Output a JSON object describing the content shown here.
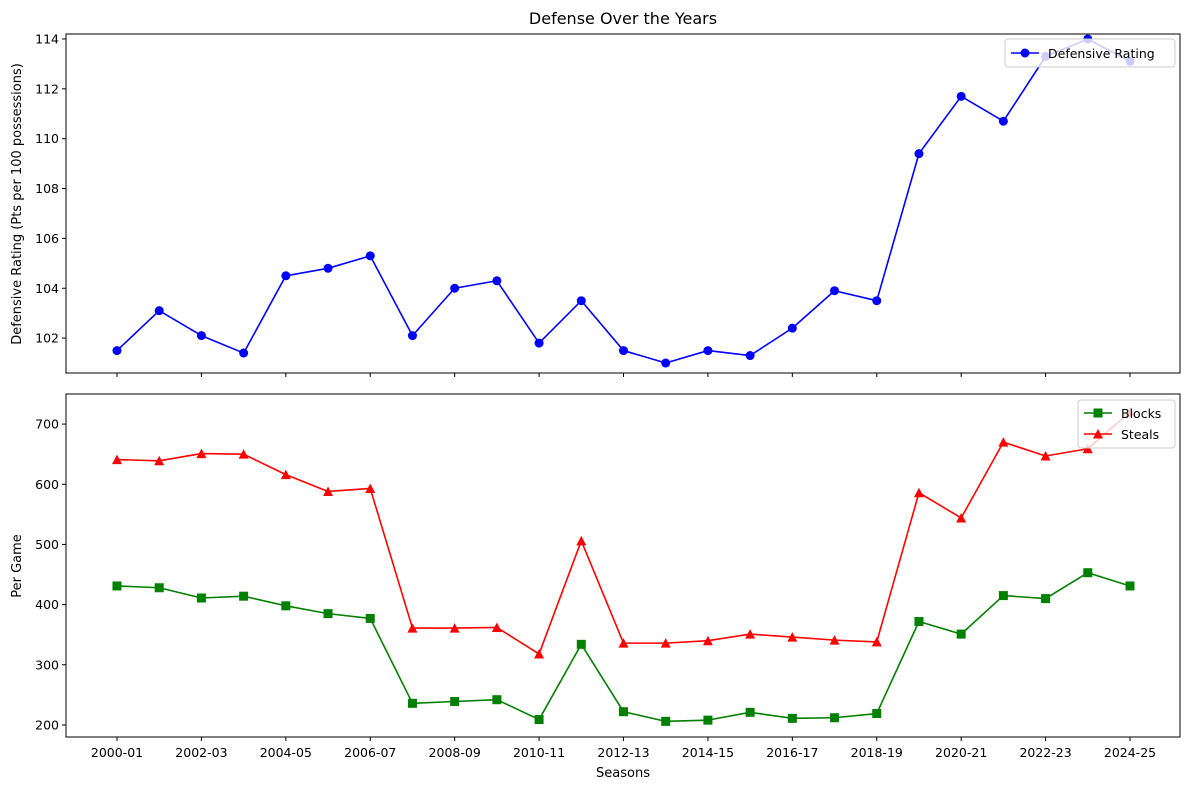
{
  "chart_data": [
    {
      "type": "line",
      "title": "Defense Over the Years",
      "xlabel": "",
      "ylabel": "Defensive Rating (Pts per 100 possessions)",
      "ylim": [
        100.6,
        114.2
      ],
      "yticks": [
        102,
        104,
        106,
        108,
        110,
        112,
        114
      ],
      "legend_position": "top-right",
      "grid": false,
      "categories": [
        "2000-01",
        "2001-02",
        "2002-03",
        "2003-04",
        "2004-05",
        "2005-06",
        "2006-07",
        "2007-08",
        "2008-09",
        "2009-10",
        "2010-11",
        "2011-12",
        "2012-13",
        "2013-14",
        "2014-15",
        "2015-16",
        "2016-17",
        "2017-18",
        "2018-19",
        "2019-20",
        "2020-21",
        "2021-22",
        "2022-23",
        "2023-24",
        "2024-25"
      ],
      "series": [
        {
          "name": "Defensive Rating",
          "color": "#0000ff",
          "marker": "circle",
          "values": [
            101.5,
            103.1,
            102.1,
            101.4,
            104.5,
            104.8,
            105.3,
            102.1,
            104.0,
            104.3,
            101.8,
            103.5,
            101.5,
            101.0,
            101.5,
            101.3,
            102.4,
            103.9,
            103.5,
            109.4,
            111.7,
            110.7,
            113.3,
            114.0,
            113.1
          ]
        }
      ]
    },
    {
      "type": "line",
      "title": "",
      "xlabel": "Seasons",
      "ylabel": "Per Game",
      "ylim": [
        180,
        750
      ],
      "yticks": [
        200,
        300,
        400,
        500,
        600,
        700
      ],
      "legend_position": "top-right",
      "grid": false,
      "xtick_labels": [
        "2000-01",
        "2002-03",
        "2004-05",
        "2006-07",
        "2008-09",
        "2010-11",
        "2012-13",
        "2014-15",
        "2016-17",
        "2018-19",
        "2020-21",
        "2022-23",
        "2024-25"
      ],
      "categories": [
        "2000-01",
        "2001-02",
        "2002-03",
        "2003-04",
        "2004-05",
        "2005-06",
        "2006-07",
        "2007-08",
        "2008-09",
        "2009-10",
        "2010-11",
        "2011-12",
        "2012-13",
        "2013-14",
        "2014-15",
        "2015-16",
        "2016-17",
        "2017-18",
        "2018-19",
        "2019-20",
        "2020-21",
        "2021-22",
        "2022-23",
        "2023-24",
        "2024-25"
      ],
      "series": [
        {
          "name": "Blocks",
          "color": "#008000",
          "marker": "square",
          "values": [
            431,
            428,
            411,
            414,
            398,
            385,
            377,
            236,
            239,
            242,
            209,
            334,
            222,
            206,
            208,
            221,
            211,
            212,
            219,
            372,
            351,
            415,
            410,
            453,
            431
          ]
        },
        {
          "name": "Steals",
          "color": "#ff0000",
          "marker": "triangle",
          "values": [
            641,
            639,
            651,
            650,
            616,
            588,
            593,
            361,
            361,
            362,
            318,
            506,
            336,
            336,
            340,
            351,
            346,
            341,
            338,
            586,
            544,
            670,
            647,
            659,
            720
          ]
        }
      ]
    }
  ]
}
